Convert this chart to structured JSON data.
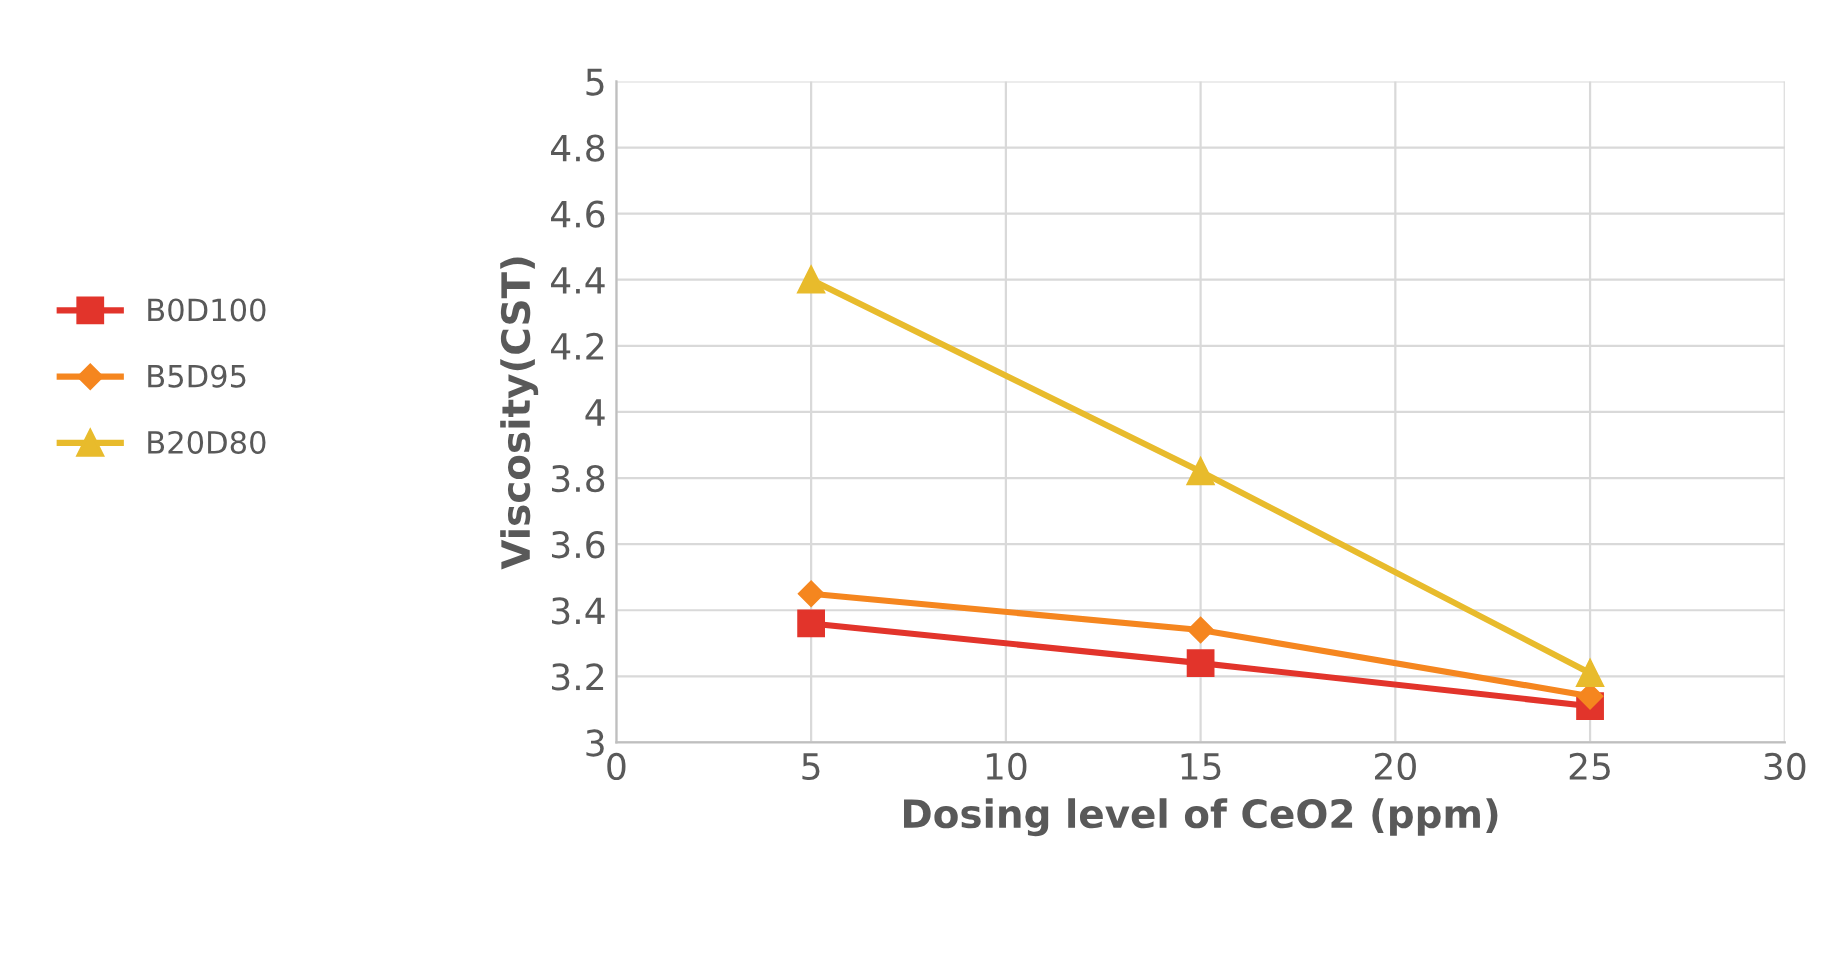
{
  "chart_data": {
    "type": "line",
    "xlabel": "Dosing level of CeO2 (ppm)",
    "ylabel": "Viscosity(CST)",
    "x": [
      5,
      15,
      25
    ],
    "series": [
      {
        "name": "B0D100",
        "color": "#e2342b",
        "marker": "square",
        "values": [
          3.36,
          3.24,
          3.11
        ]
      },
      {
        "name": "B5D95",
        "color": "#f5861f",
        "marker": "diamond",
        "values": [
          3.45,
          3.34,
          3.14
        ]
      },
      {
        "name": "B20D80",
        "color": "#e8bb2c",
        "marker": "triangle",
        "values": [
          4.4,
          3.82,
          3.21
        ]
      }
    ],
    "xlim": [
      0,
      30
    ],
    "xticks": [
      0,
      5,
      10,
      15,
      20,
      25,
      30
    ],
    "ylim": [
      3,
      5
    ],
    "yticks": [
      3,
      3.2,
      3.4,
      3.6,
      3.8,
      4,
      4.2,
      4.4,
      4.6,
      4.8,
      5
    ],
    "grid": true,
    "legend": "left",
    "line_style": "solid"
  }
}
